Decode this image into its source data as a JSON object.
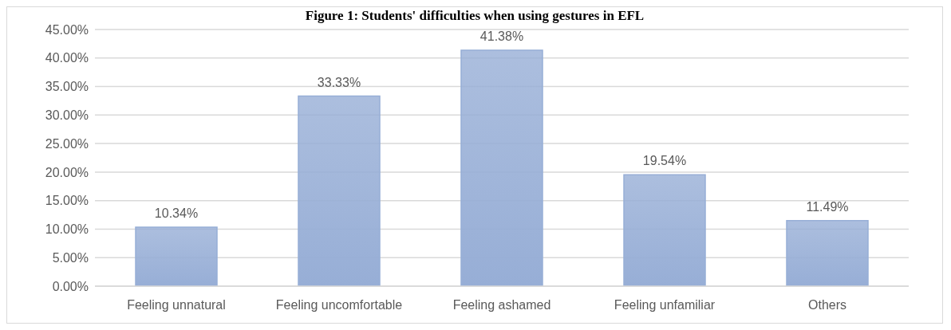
{
  "chart_data": {
    "type": "bar",
    "title": "Figure 1: Students' difficulties when using gestures in EFL",
    "categories": [
      "Feeling unnatural",
      "Feeling uncomfortable",
      "Feeling ashamed",
      "Feeling unfamiliar",
      "Others"
    ],
    "values": [
      10.34,
      33.33,
      41.38,
      19.54,
      11.49
    ],
    "value_labels": [
      "10.34%",
      "33.33%",
      "41.38%",
      "19.54%",
      "11.49%"
    ],
    "color": "#97aed6",
    "ylim": [
      0,
      45
    ],
    "yticks": [
      {
        "value": 0,
        "label": "0.00%"
      },
      {
        "value": 5,
        "label": "5.00%"
      },
      {
        "value": 10,
        "label": "10.00%"
      },
      {
        "value": 15,
        "label": "15.00%"
      },
      {
        "value": 20,
        "label": "20.00%"
      },
      {
        "value": 25,
        "label": "25.00%"
      },
      {
        "value": 30,
        "label": "30.00%"
      },
      {
        "value": 35,
        "label": "35.00%"
      },
      {
        "value": 40,
        "label": "40.00%"
      },
      {
        "value": 45,
        "label": "45.00%"
      }
    ],
    "grid": "y"
  }
}
